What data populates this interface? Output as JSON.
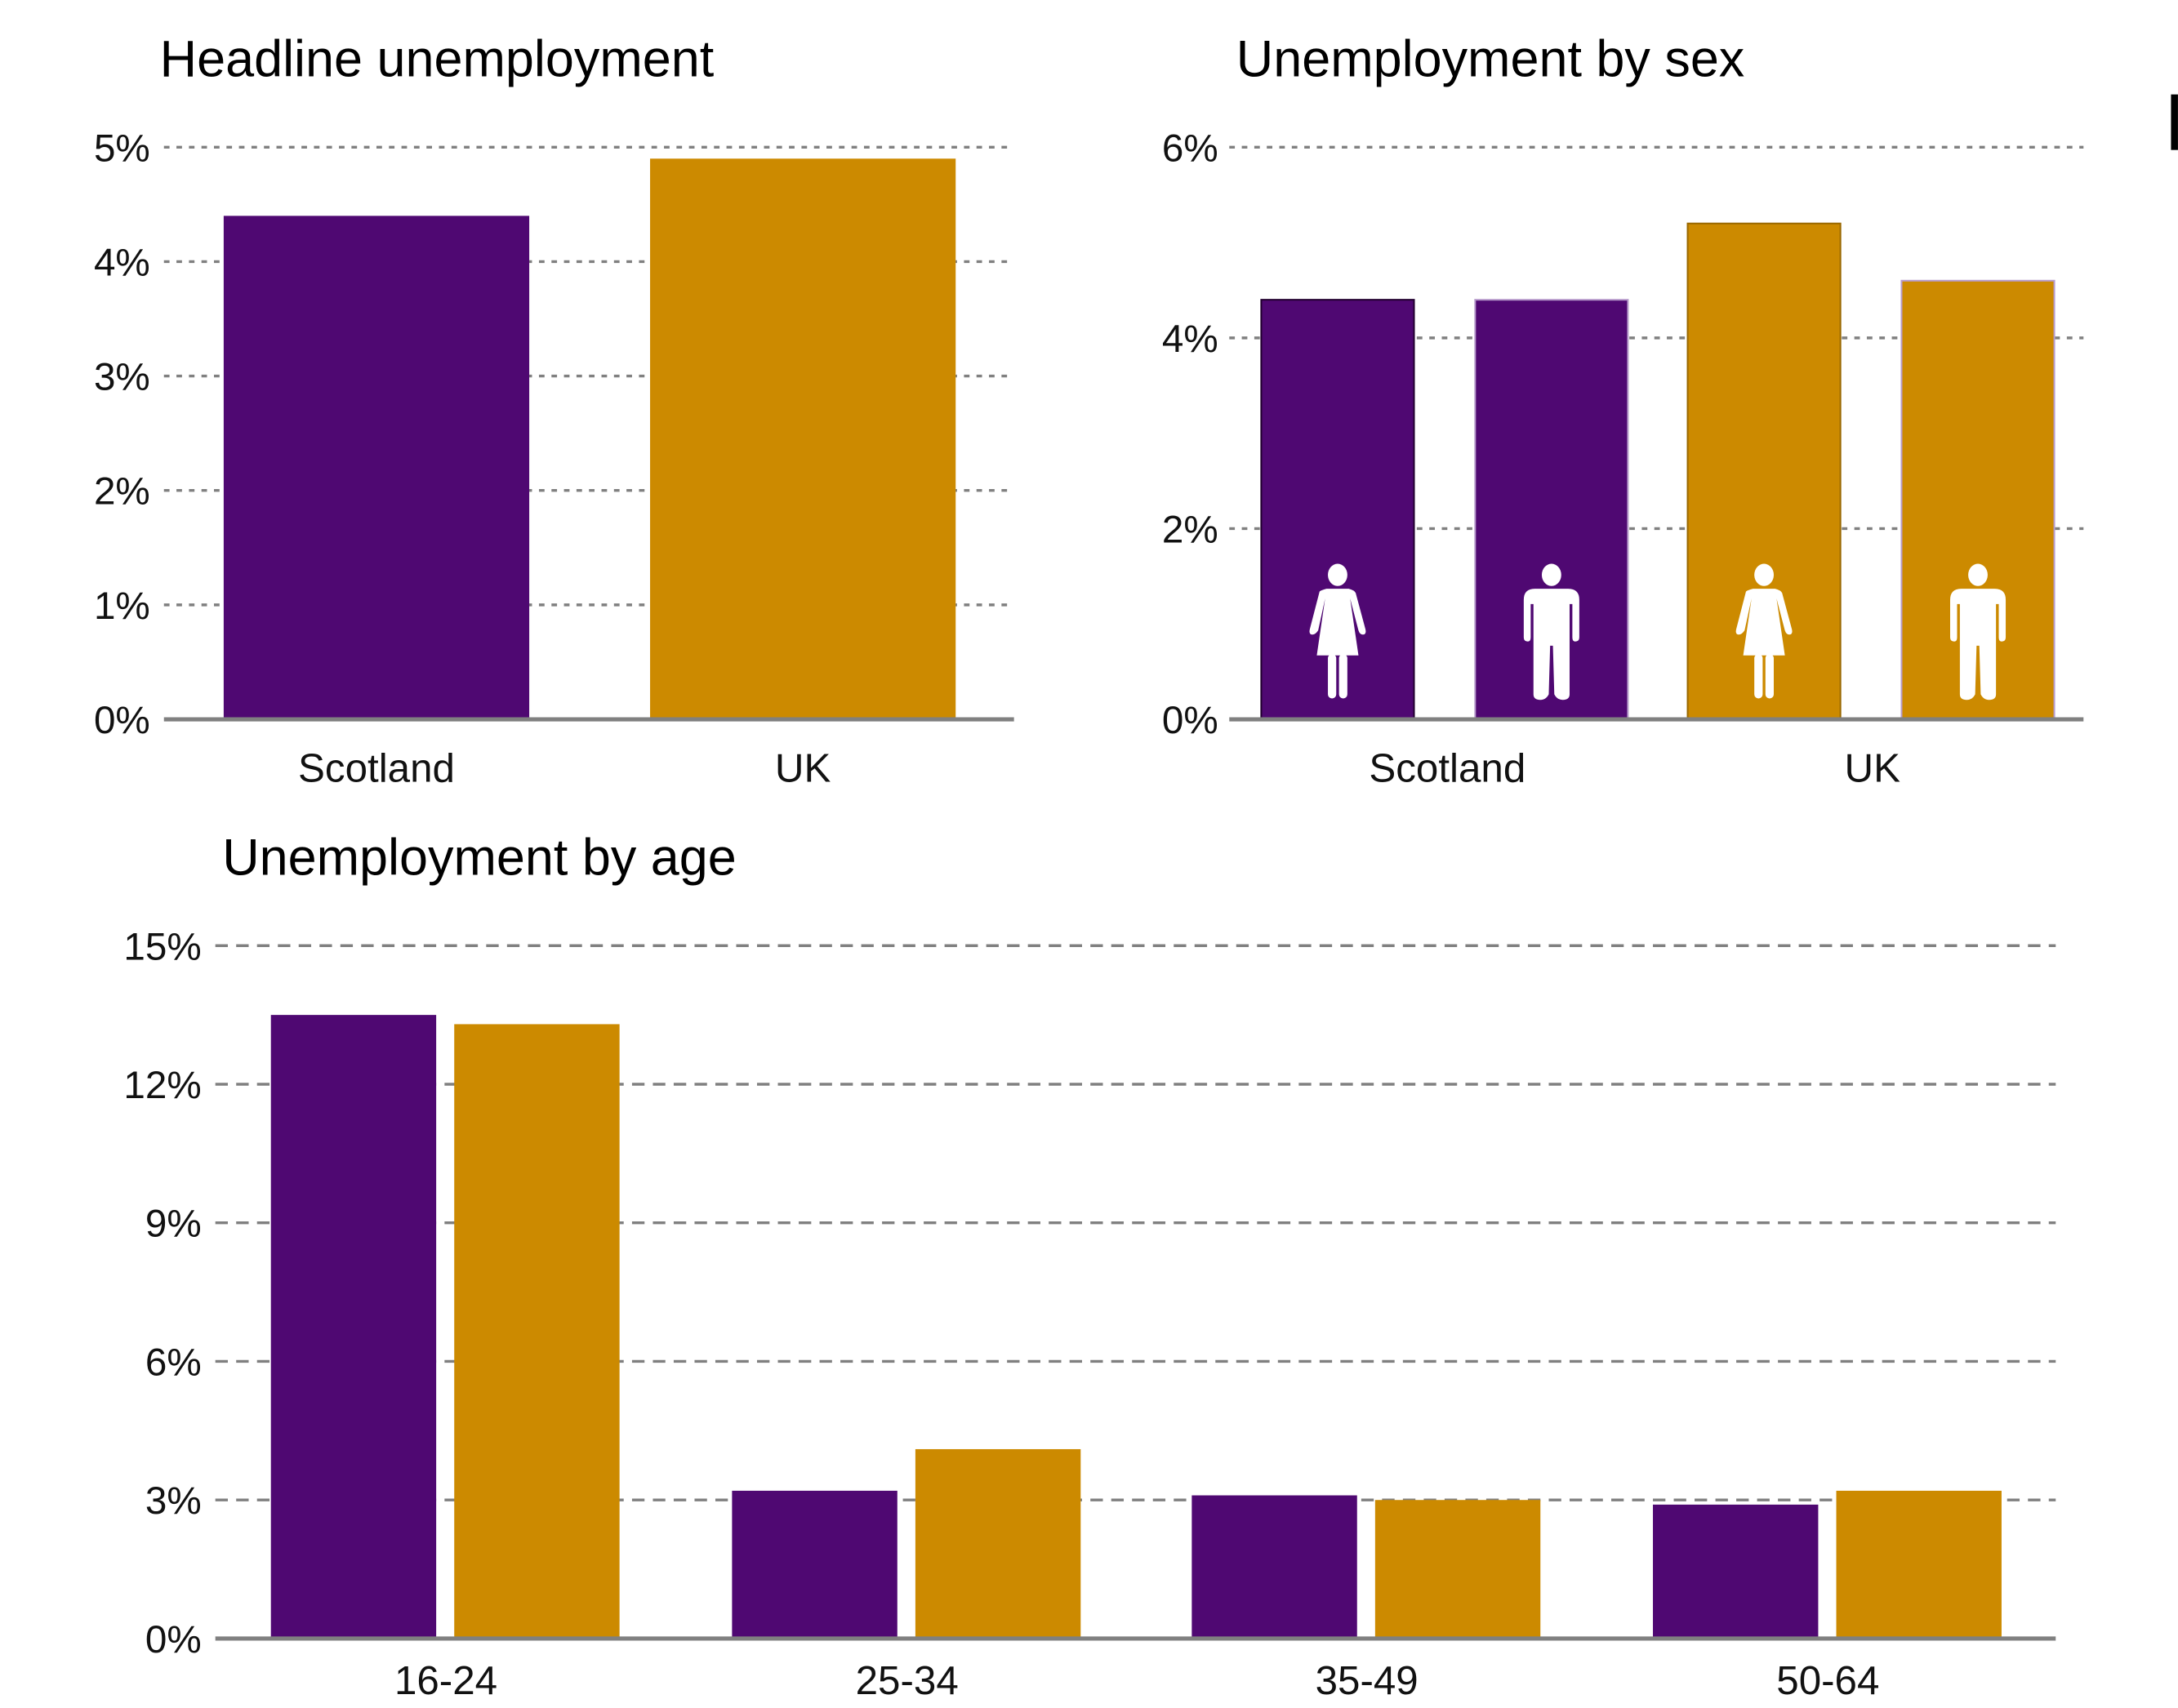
{
  "colors": {
    "scotland": "#4f0872",
    "uk": "#cc8a00",
    "grid": "#808080"
  },
  "chart_data": [
    {
      "type": "bar",
      "title": "Headline unemployment",
      "categories": [
        "Scotland",
        "UK"
      ],
      "values": [
        4.4,
        4.9
      ],
      "ylim": [
        0,
        5
      ],
      "yticks": [
        "0%",
        "1%",
        "2%",
        "3%",
        "4%",
        "5%"
      ],
      "grid": true
    },
    {
      "type": "bar",
      "title": "Unemployment by sex",
      "categories": [
        "Scotland",
        "UK"
      ],
      "series": [
        {
          "icon": "female-icon",
          "values": [
            4.4,
            5.2
          ]
        },
        {
          "icon": "male-icon",
          "values": [
            4.4,
            4.6
          ]
        }
      ],
      "ylim": [
        0,
        6
      ],
      "yticks": [
        "0%",
        "2%",
        "4%",
        "6%"
      ],
      "grid": true
    },
    {
      "type": "bar",
      "title": "Unemployment by age",
      "categories": [
        "16-24",
        "25-34",
        "35-49",
        "50-64"
      ],
      "series": [
        {
          "values": [
            13.5,
            3.2,
            3.1,
            2.9
          ]
        },
        {
          "values": [
            13.3,
            4.1,
            3.0,
            3.2
          ]
        }
      ],
      "ylim": [
        0,
        15
      ],
      "yticks": [
        "0%",
        "3%",
        "6%",
        "9%",
        "12%",
        "15%"
      ],
      "grid": true
    }
  ]
}
